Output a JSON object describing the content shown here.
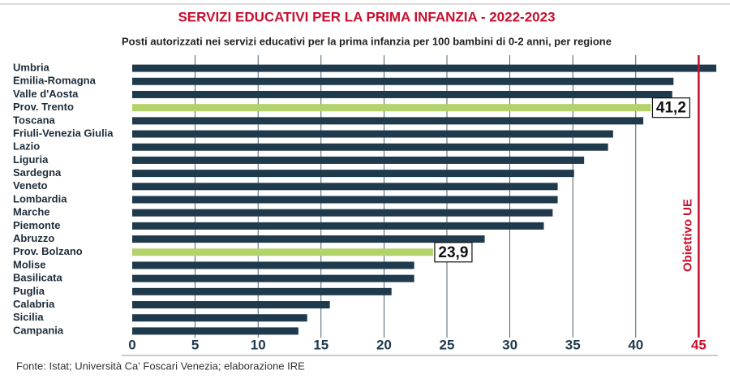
{
  "chart_data": {
    "type": "bar",
    "orientation": "horizontal",
    "title": "SERVIZI EDUCATIVI PER LA PRIMA INFANZIA - 2022-2023",
    "subtitle": "Posti autorizzati nei servizi educativi per la prima infanzia per 100 bambini di 0-2 anni, per regione",
    "source": "Fonte: Istat; Università Ca' Foscari Venezia; elaborazione IRE",
    "categories": [
      "Umbria",
      "Emilia-Romagna",
      "Valle d'Aosta",
      "Prov. Trento",
      "Toscana",
      "Friuli-Venezia Giulia",
      "Lazio",
      "Liguria",
      "Sardegna",
      "Veneto",
      "Lombardia",
      "Marche",
      "Piemonte",
      "Abruzzo",
      "Prov. Bolzano",
      "Molise",
      "Basilicata",
      "Puglia",
      "Calabria",
      "Sicilia",
      "Campania"
    ],
    "values": [
      46.4,
      43.0,
      42.9,
      41.2,
      40.6,
      38.2,
      37.8,
      35.9,
      35.1,
      33.8,
      33.8,
      33.4,
      32.7,
      28.0,
      23.9,
      22.4,
      22.4,
      20.6,
      15.7,
      13.9,
      13.2
    ],
    "value_labels": [
      null,
      null,
      null,
      "41,2",
      null,
      null,
      null,
      null,
      null,
      null,
      null,
      null,
      null,
      null,
      "23,9",
      null,
      null,
      null,
      null,
      null,
      null
    ],
    "colors": [
      "#1f3a4d",
      "#1f3a4d",
      "#1f3a4d",
      "#b3d36a",
      "#1f3a4d",
      "#1f3a4d",
      "#1f3a4d",
      "#1f3a4d",
      "#1f3a4d",
      "#1f3a4d",
      "#1f3a4d",
      "#1f3a4d",
      "#1f3a4d",
      "#1f3a4d",
      "#b3d36a",
      "#1f3a4d",
      "#1f3a4d",
      "#1f3a4d",
      "#1f3a4d",
      "#1f3a4d",
      "#1f3a4d"
    ],
    "xlim": [
      0,
      46.5
    ],
    "xticks": [
      0,
      5,
      10,
      15,
      20,
      25,
      30,
      35,
      40,
      45
    ],
    "grid": true,
    "target": {
      "value": 45,
      "label": "Obiettivo UE",
      "color": "#c8102e"
    }
  }
}
